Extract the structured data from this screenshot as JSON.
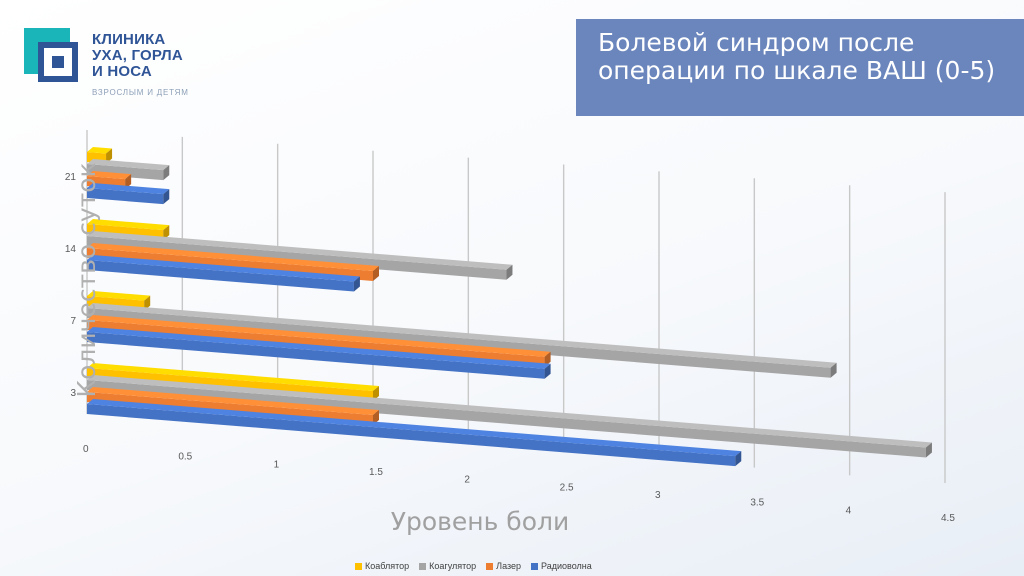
{
  "logo": {
    "line1": "КЛИНИКА",
    "line2": "УХА, ГОРЛА",
    "line3": "И НОСА",
    "tagline": "ВЗРОСЛЫМ И ДЕТЯМ",
    "colors": {
      "teal": "#19b5b8",
      "navy": "#2f5597"
    }
  },
  "title": "Болевой синдром после операции по шкале ВАШ (0-5)",
  "chart_data": {
    "type": "bar",
    "orientation": "horizontal",
    "style": "3d",
    "xlabel": "Уровень боли",
    "ylabel": "Количество суток",
    "categories": [
      "3",
      "7",
      "14",
      "21"
    ],
    "x_ticks": [
      "0",
      "0.5",
      "1",
      "1.5",
      "2",
      "2.5",
      "3",
      "3.5",
      "4",
      "4.5"
    ],
    "xlim": [
      0,
      4.5
    ],
    "grid": true,
    "legend_position": "bottom",
    "series": [
      {
        "name": "Коаблятор",
        "color": "#ffc000",
        "values": [
          1.5,
          0.3,
          0.4,
          0.1
        ]
      },
      {
        "name": "Коагулятор",
        "color": "#a5a5a5",
        "values": [
          4.4,
          3.9,
          2.2,
          0.4
        ]
      },
      {
        "name": "Лазер",
        "color": "#ed7d31",
        "values": [
          1.5,
          2.4,
          1.5,
          0.2
        ]
      },
      {
        "name": "Радиоволна",
        "color": "#4472c4",
        "values": [
          3.4,
          2.4,
          1.4,
          0.4
        ]
      }
    ]
  }
}
